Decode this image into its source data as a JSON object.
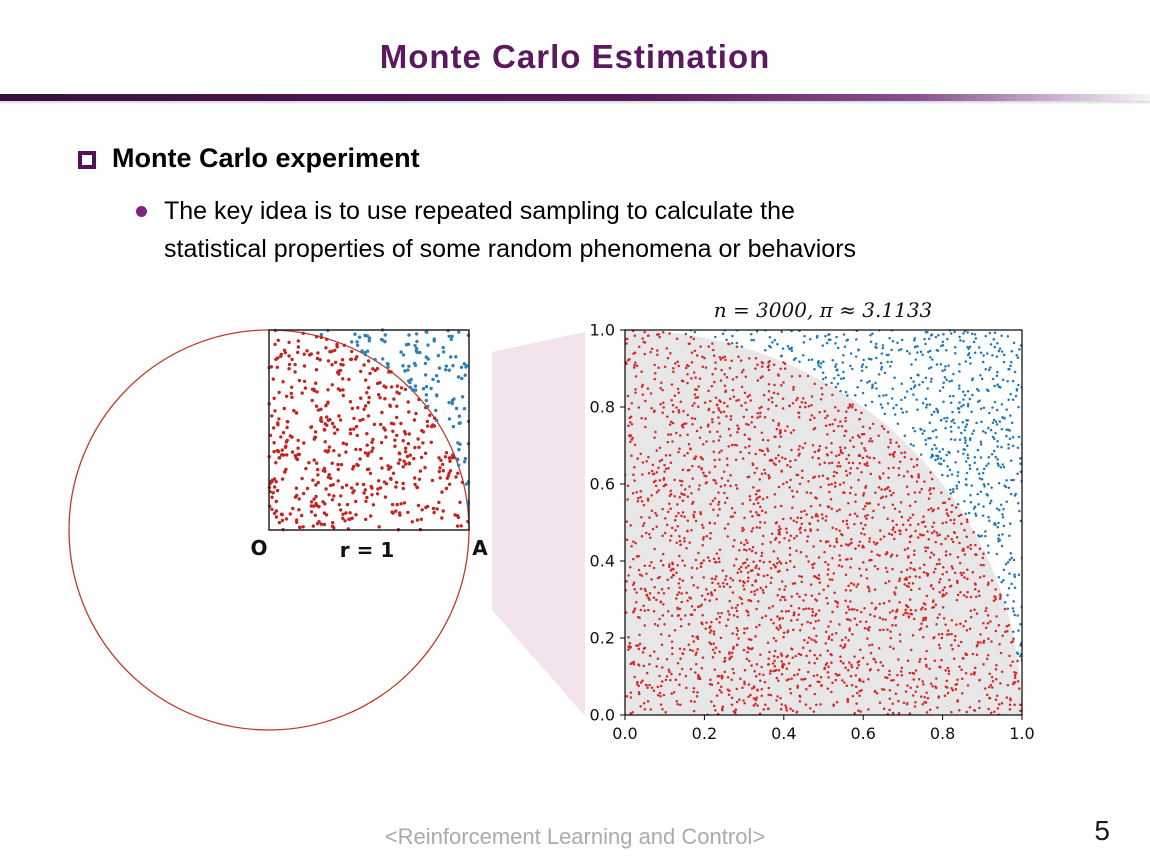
{
  "slide": {
    "title": "Monte Carlo Estimation",
    "footer": "<Reinforcement Learning and Control>",
    "page_number": "5",
    "accent_color": "#5b1a60"
  },
  "content": {
    "heading": "Monte Carlo experiment",
    "bullet_lines": [
      "The key idea is to use repeated sampling to calculate the",
      "statistical properties of some random phenomena or behaviors"
    ]
  },
  "left_figure": {
    "labels": {
      "origin": "O",
      "radius": "r = 1",
      "corner": "A"
    },
    "circle_color": "#c0392b",
    "square_color": "#222222",
    "inside_color": "#c4231f",
    "outside_color": "#2f7fb8",
    "n_points": 620,
    "seed": 12
  },
  "connector": {
    "fill": "#f3e3ec"
  },
  "chart_data": {
    "type": "scatter",
    "title": "n = 3000, π ≈ 3.1133",
    "n": 3000,
    "pi_estimate": 3.1133,
    "xlabel": "",
    "ylabel": "",
    "xlim": [
      0,
      1
    ],
    "ylim": [
      0,
      1
    ],
    "xticks": [
      "0.0",
      "0.2",
      "0.4",
      "0.6",
      "0.8",
      "1.0"
    ],
    "yticks": [
      "0.0",
      "0.2",
      "0.4",
      "0.6",
      "0.8",
      "1.0"
    ],
    "grid": false,
    "legend": "none",
    "region": {
      "shape": "quarter-circle r=1 centered at origin",
      "fill": "#e7e7e7"
    },
    "series": [
      {
        "name": "points inside quarter circle (x²+y² ≤ 1)",
        "color": "#d62728"
      },
      {
        "name": "points outside quarter circle",
        "color": "#1f77b4"
      }
    ],
    "seed": 97
  }
}
